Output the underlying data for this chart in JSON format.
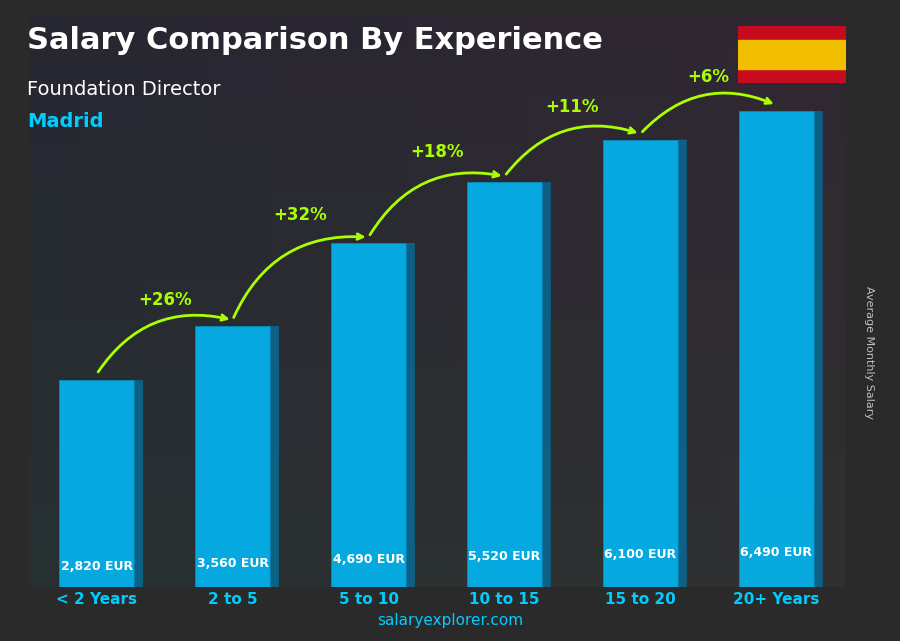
{
  "title": "Salary Comparison By Experience",
  "subtitle": "Foundation Director",
  "city": "Madrid",
  "categories": [
    "< 2 Years",
    "2 to 5",
    "5 to 10",
    "10 to 15",
    "15 to 20",
    "20+ Years"
  ],
  "values": [
    2820,
    3560,
    4690,
    5520,
    6100,
    6490
  ],
  "value_labels": [
    "2,820 EUR",
    "3,560 EUR",
    "4,690 EUR",
    "5,520 EUR",
    "6,100 EUR",
    "6,490 EUR"
  ],
  "pct_changes": [
    "+26%",
    "+32%",
    "+18%",
    "+11%",
    "+6%"
  ],
  "bar_color_face": "#00BFFF",
  "bar_color_edge": "#0099CC",
  "bar_color_dark": "#0077AA",
  "title_color": "#FFFFFF",
  "subtitle_color": "#FFFFFF",
  "city_color": "#00CCFF",
  "label_color": "#FFFFFF",
  "pct_color": "#AAFF00",
  "tick_color": "#00CCFF",
  "watermark": "salaryexplorer.com",
  "ylabel_side": "Average Monthly Salary",
  "ylim": [
    0,
    7800
  ],
  "background_color": "#1a1a2e",
  "figsize": [
    9.0,
    6.41
  ]
}
